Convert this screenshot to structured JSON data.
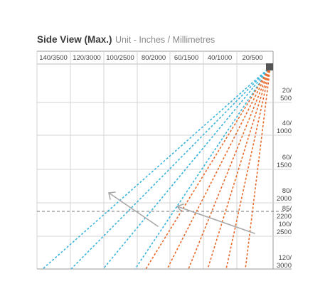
{
  "title": {
    "main": "Side View (Max.)",
    "sub": "Unit - Inches / Millimetres"
  },
  "top_scale_labels": [
    "140/3500",
    "120/3000",
    "100/2500",
    "80/2000",
    "60/1500",
    "40/1000",
    "20/500"
  ],
  "side_scale_labels": [
    [
      "20/",
      "500"
    ],
    [
      "40/",
      "1000"
    ],
    [
      "60/",
      "1500"
    ],
    [
      "80/",
      "2000"
    ],
    [
      "85/",
      "2200"
    ],
    [
      "100/",
      "2500"
    ],
    [
      "120/",
      "3000"
    ]
  ],
  "colors": {
    "blue_beam": "#3ab4dc",
    "orange_beam": "#e86a2a",
    "grid": "#d4d4d4",
    "arrow": "#a8a8a8",
    "sensor": "#555555"
  }
}
